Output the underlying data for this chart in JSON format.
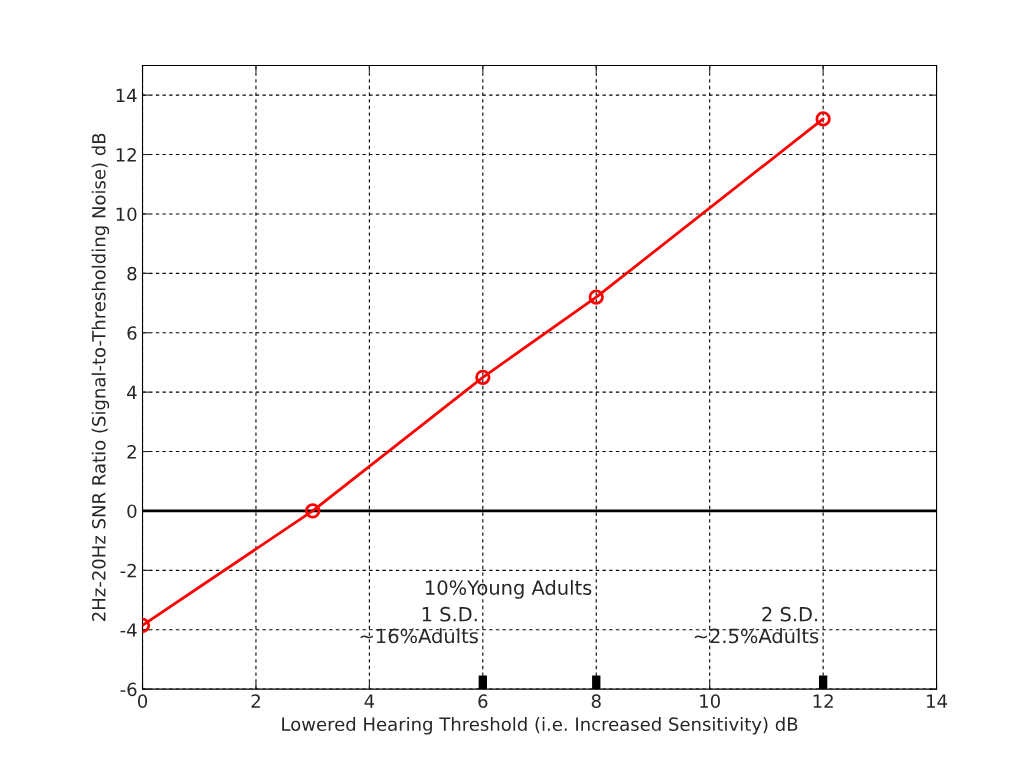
{
  "chart_data": {
    "type": "line",
    "xlabel": "Lowered Hearing Threshold (i.e. Increased Sensitivity) dB",
    "ylabel": "2Hz-20Hz SNR Ratio (Signal-to-Thresholding Noise) dB",
    "x": [
      0,
      3,
      6,
      8,
      12
    ],
    "series": [
      {
        "color": "#ff0000",
        "values": [
          -3.85,
          0,
          4.5,
          7.2,
          13.2
        ]
      }
    ],
    "marker": "circle",
    "line_style": "solid",
    "xlim": [
      0,
      14
    ],
    "xticks": [
      0,
      2,
      4,
      6,
      8,
      10,
      12,
      14
    ],
    "ylim": [
      -6,
      15
    ],
    "yticks": [
      -6,
      -4,
      -2,
      0,
      2,
      4,
      6,
      8,
      10,
      12,
      14
    ],
    "grid": true,
    "ref_lines": [
      {
        "axis": "y",
        "value": 0,
        "color": "#000000"
      }
    ],
    "annotations": [
      "1 S.D.\n~16%Adults",
      "10%Young Adults",
      "2 S.D.\n~2.5%Adults"
    ]
  }
}
